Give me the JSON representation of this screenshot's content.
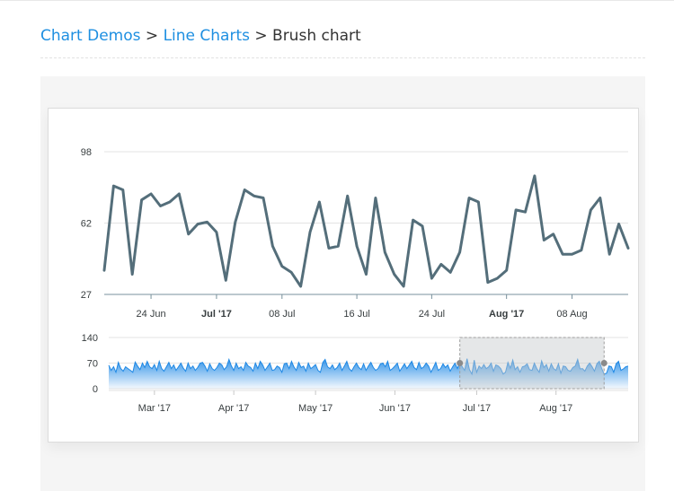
{
  "breadcrumb": {
    "link1": "Chart Demos",
    "sep1": ">",
    "link2": "Line Charts",
    "sep2": ">",
    "current": "Brush chart"
  },
  "colors": {
    "link": "#1e8fe1",
    "main_line": "#546e7a",
    "area_stroke": "#1e88e5",
    "area_fill_top": "#1e88e5",
    "grid": "#e3e3e3",
    "brush_fill": "#c6c9cc"
  },
  "chart_data": [
    {
      "type": "line",
      "series": [
        {
          "values": [
            39,
            81,
            79,
            37,
            74,
            77,
            71,
            73,
            77,
            57,
            62,
            63,
            58,
            34,
            63,
            79,
            76,
            75,
            51,
            41,
            38,
            31,
            58,
            73,
            50,
            51,
            76,
            51,
            37,
            75,
            48,
            37,
            31,
            64,
            61,
            35,
            42,
            38,
            48,
            75,
            73,
            33,
            35,
            39,
            69,
            68,
            86,
            54,
            57,
            47,
            47,
            49,
            69,
            75,
            47,
            62,
            50
          ]
        }
      ],
      "ylim": [
        27,
        98
      ],
      "yticks": [
        "98",
        "62",
        "27"
      ],
      "xticks": [
        {
          "label": "24 Jun",
          "index": 5,
          "bold": false
        },
        {
          "label": "Jul '17",
          "index": 12,
          "bold": true
        },
        {
          "label": "08 Jul",
          "index": 19,
          "bold": false
        },
        {
          "label": "16 Jul",
          "index": 27,
          "bold": false
        },
        {
          "label": "24 Jul",
          "index": 35,
          "bold": false
        },
        {
          "label": "Aug '17",
          "index": 43,
          "bold": true
        },
        {
          "label": "08 Aug",
          "index": 50,
          "bold": false
        }
      ],
      "grid": true
    },
    {
      "type": "area",
      "series": [
        {
          "values": [
            64,
            50,
            60,
            45,
            72,
            55,
            48,
            60,
            55,
            50,
            45,
            73,
            62,
            52,
            70,
            58,
            75,
            60,
            55,
            66,
            50,
            75,
            55,
            48,
            60,
            72,
            55,
            65,
            50,
            60,
            70,
            56,
            48,
            70,
            55,
            62,
            50,
            58,
            70,
            72,
            62,
            48,
            68,
            55,
            50,
            58,
            70,
            65,
            52,
            60,
            80,
            62,
            50,
            70,
            55,
            60,
            50,
            72,
            62,
            58,
            48,
            70,
            55,
            75,
            65,
            50,
            60,
            70,
            50,
            52,
            62,
            58,
            45,
            68,
            70,
            55,
            75,
            60,
            50,
            72,
            58,
            62,
            48,
            70,
            55,
            60,
            66,
            50,
            45,
            72,
            80,
            60,
            55,
            65,
            52,
            58,
            70,
            50,
            62,
            75,
            55,
            48,
            60,
            70,
            58,
            52,
            68,
            50,
            62,
            72,
            58,
            50,
            55,
            68,
            70,
            60,
            75,
            50,
            55,
            62,
            70,
            48,
            58,
            68,
            55,
            65,
            75,
            58,
            52,
            72,
            55,
            60,
            70,
            62,
            45,
            58,
            72,
            50,
            55,
            68,
            58,
            65,
            48,
            60,
            70,
            55,
            72,
            60,
            50,
            82,
            52,
            40,
            78,
            45,
            62,
            55,
            66,
            55,
            60,
            70,
            48,
            65,
            62,
            55,
            40,
            45,
            72,
            56,
            78,
            52,
            60,
            45,
            60,
            62,
            68,
            52,
            50,
            70,
            55,
            45,
            76,
            58,
            66,
            48,
            68,
            55,
            50,
            68,
            42,
            62,
            60,
            50,
            48,
            58,
            62,
            80,
            54,
            55,
            48,
            62,
            70,
            60,
            48,
            68,
            75,
            55,
            40,
            42,
            62,
            60,
            45,
            68,
            75,
            50,
            54,
            60,
            62
          ]
        }
      ],
      "ylim": [
        0,
        140
      ],
      "yticks": [
        "140",
        "70",
        "0"
      ],
      "xticks": [
        {
          "label": "Mar '17",
          "index": 19
        },
        {
          "label": "Apr '17",
          "index": 52
        },
        {
          "label": "May '17",
          "index": 86
        },
        {
          "label": "Jun '17",
          "index": 119
        },
        {
          "label": "Jul '17",
          "index": 153
        },
        {
          "label": "Aug '17",
          "index": 186
        }
      ],
      "brush": {
        "start_index": 146,
        "end_index": 206
      }
    }
  ]
}
